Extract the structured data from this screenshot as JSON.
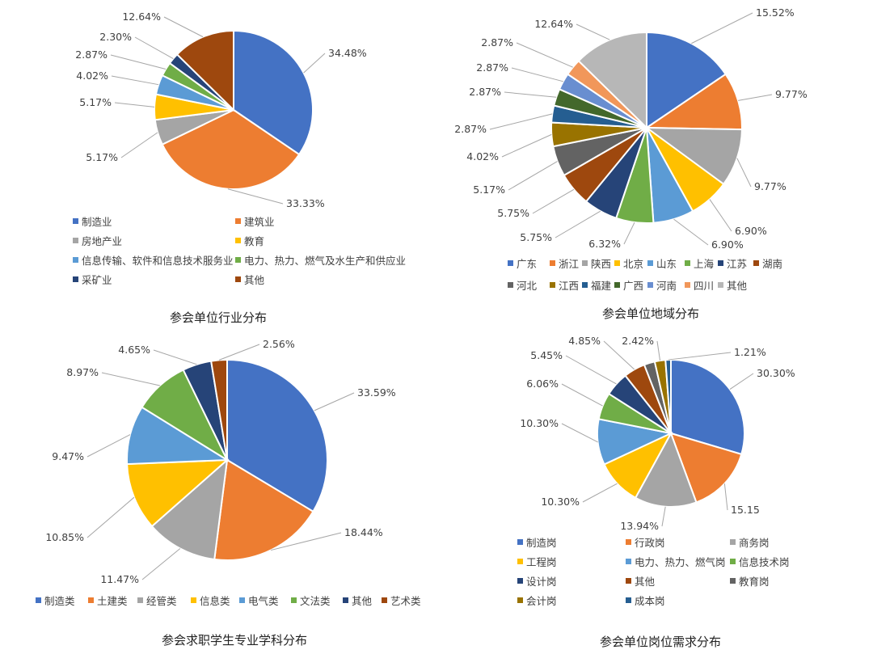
{
  "chart_data": [
    {
      "type": "pie",
      "title": "参会单位行业分布",
      "slices": [
        {
          "label": "制造业",
          "value": 34.48,
          "text": "34.48%",
          "color": "#4472C4"
        },
        {
          "label": "建筑业",
          "value": 33.33,
          "text": "33.33%",
          "color": "#ED7D31"
        },
        {
          "label": "房地产业",
          "value": 5.17,
          "text": "5.17%",
          "color": "#A5A5A5"
        },
        {
          "label": "教育",
          "value": 5.17,
          "text": "5.17%",
          "color": "#FFC000"
        },
        {
          "label": "信息传输、软件和信息技术服务业",
          "value": 4.02,
          "text": "4.02%",
          "color": "#5B9BD5"
        },
        {
          "label": "电力、热力、燃气及水生产和供应业",
          "value": 2.87,
          "text": "2.87%",
          "color": "#70AD47"
        },
        {
          "label": "采矿业",
          "value": 2.3,
          "text": "2.30%",
          "color": "#264478"
        },
        {
          "label": "其他",
          "value": 12.64,
          "text": "12.64%",
          "color": "#9E480E"
        }
      ]
    },
    {
      "type": "pie",
      "title": "参会单位地域分布",
      "slices": [
        {
          "label": "广东",
          "value": 15.52,
          "text": "15.52%",
          "color": "#4472C4"
        },
        {
          "label": "浙江",
          "value": 9.77,
          "text": "9.77%",
          "color": "#ED7D31"
        },
        {
          "label": "陕西",
          "value": 9.77,
          "text": "9.77%",
          "color": "#A5A5A5"
        },
        {
          "label": "北京",
          "value": 6.9,
          "text": "6.90%",
          "color": "#FFC000"
        },
        {
          "label": "山东",
          "value": 6.9,
          "text": "6.90%",
          "color": "#5B9BD5"
        },
        {
          "label": "上海",
          "value": 6.32,
          "text": "6.32%",
          "color": "#70AD47"
        },
        {
          "label": "江苏",
          "value": 5.75,
          "text": "5.75%",
          "color": "#264478"
        },
        {
          "label": "湖南",
          "value": 5.75,
          "text": "5.75%",
          "color": "#9E480E"
        },
        {
          "label": "河北",
          "value": 5.17,
          "text": "5.17%",
          "color": "#636363"
        },
        {
          "label": "江西",
          "value": 4.02,
          "text": "4.02%",
          "color": "#997300"
        },
        {
          "label": "福建",
          "value": 2.87,
          "text": "2.87%",
          "color": "#255E91"
        },
        {
          "label": "广西",
          "value": 2.87,
          "text": "2.87%",
          "color": "#43682B"
        },
        {
          "label": "河南",
          "value": 2.87,
          "text": "2.87%",
          "color": "#698ED0"
        },
        {
          "label": "四川",
          "value": 2.87,
          "text": "2.87%",
          "color": "#F1975A"
        },
        {
          "label": "其他",
          "value": 12.64,
          "text": "12.64%",
          "color": "#B7B7B7"
        }
      ]
    },
    {
      "type": "pie",
      "title": "参会求职学生专业学科分布",
      "slices": [
        {
          "label": "制造类",
          "value": 33.59,
          "text": "33.59%",
          "color": "#4472C4"
        },
        {
          "label": "土建类",
          "value": 18.44,
          "text": "18.44%",
          "color": "#ED7D31"
        },
        {
          "label": "经管类",
          "value": 11.47,
          "text": "11.47%",
          "color": "#A5A5A5"
        },
        {
          "label": "信息类",
          "value": 10.85,
          "text": "10.85%",
          "color": "#FFC000"
        },
        {
          "label": "电气类",
          "value": 9.47,
          "text": "9.47%",
          "color": "#5B9BD5"
        },
        {
          "label": "文法类",
          "value": 8.97,
          "text": "8.97%",
          "color": "#70AD47"
        },
        {
          "label": "其他",
          "value": 4.65,
          "text": "4.65%",
          "color": "#264478"
        },
        {
          "label": "艺术类",
          "value": 2.56,
          "text": "2.56%",
          "color": "#9E480E"
        }
      ]
    },
    {
      "type": "pie",
      "title": "参会单位岗位需求分布",
      "slices": [
        {
          "label": "制造岗",
          "value": 30.3,
          "text": "30.30%",
          "color": "#4472C4"
        },
        {
          "label": "行政岗",
          "value": 15.15,
          "text": "15.15",
          "color": "#ED7D31"
        },
        {
          "label": "商务岗",
          "value": 13.94,
          "text": "13.94%",
          "color": "#A5A5A5"
        },
        {
          "label": "工程岗",
          "value": 10.3,
          "text": "10.30%",
          "color": "#FFC000"
        },
        {
          "label": "电力、热力、燃气岗",
          "value": 10.3,
          "text": "10.30%",
          "color": "#5B9BD5"
        },
        {
          "label": "信息技术岗",
          "value": 6.06,
          "text": "6.06%",
          "color": "#70AD47"
        },
        {
          "label": "设计岗",
          "value": 5.45,
          "text": "5.45%",
          "color": "#264478"
        },
        {
          "label": "其他",
          "value": 4.85,
          "text": "4.85%",
          "color": "#9E480E"
        },
        {
          "label": "教育岗",
          "value": 2.42,
          "text": "",
          "color": "#636363"
        },
        {
          "label": "会计岗",
          "value": 2.42,
          "text": "2.42%",
          "color": "#997300"
        },
        {
          "label": "成本岗",
          "value": 1.21,
          "text": "1.21%",
          "color": "#255E91"
        }
      ]
    }
  ]
}
